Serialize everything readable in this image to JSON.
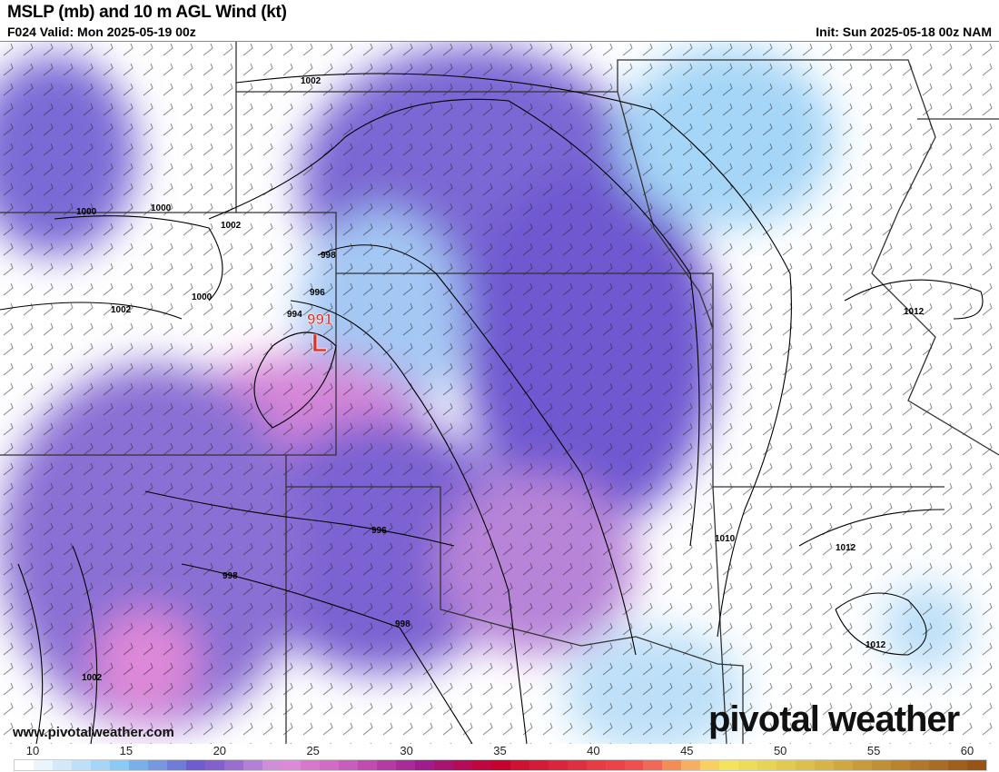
{
  "header": {
    "title": "MSLP (mb) and 10 m AGL Wind (kt)",
    "valid": "F024 Valid: Mon 2025-05-19 00z",
    "init": "Init: Sun 2025-05-18 00z NAM"
  },
  "map": {
    "low_center": {
      "pressure": "991",
      "symbol": "L",
      "color": "#e0302a"
    },
    "isobar_labels": [
      "1002",
      "1000",
      "1000",
      "1002",
      "998",
      "996",
      "994",
      "1000",
      "1002",
      "996",
      "998",
      "998",
      "1002",
      "1010",
      "1012",
      "1012",
      "1012"
    ]
  },
  "footer": {
    "website": "www.pivotalweather.com",
    "logo": "pivotal weather"
  },
  "colorbar": {
    "ticks": [
      "10",
      "15",
      "20",
      "25",
      "30",
      "35",
      "40",
      "45",
      "50",
      "55",
      "60"
    ],
    "colors": [
      "#ffffff",
      "#eaf4fc",
      "#d3e9f9",
      "#bde0f8",
      "#a5d6f7",
      "#8ccaf5",
      "#7ab0ea",
      "#7698e0",
      "#6f7dd8",
      "#6e5cd0",
      "#8460cc",
      "#9a6ed0",
      "#b280d4",
      "#ce8ed8",
      "#dc8ad8",
      "#d878cc",
      "#d06cc4",
      "#c85ebc",
      "#c04cb0",
      "#b63aa4",
      "#aa2a98",
      "#a01c8c",
      "#a81470",
      "#b40c58",
      "#c00640",
      "#c80030",
      "#ce1232",
      "#d41c38",
      "#da263c",
      "#e03040",
      "#e63c44",
      "#ea4448",
      "#ee5050",
      "#f06858",
      "#f48c58",
      "#f6ae60",
      "#f8d060",
      "#f4e45c",
      "#eedc58",
      "#e8d454",
      "#e2ca50",
      "#dcc04c",
      "#d6b446",
      "#d0a840",
      "#c89c3a",
      "#c09034",
      "#b8842e",
      "#b07828",
      "#a86c22",
      "#a0601c",
      "#985416"
    ]
  }
}
